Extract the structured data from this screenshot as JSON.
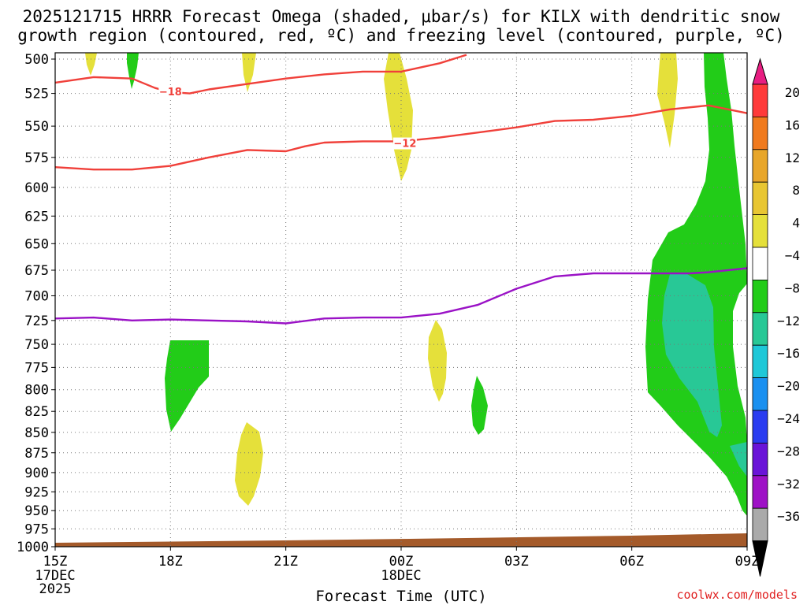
{
  "chart_data": {
    "type": "contour",
    "title_line1": "2025121715 HRRR Forecast Omega (shaded, μbar/s) for KILX with dendritic snow",
    "title_line2": "growth region (contoured, red, ºC) and freezing level (contoured, purple, ºC)",
    "xlabel": "Forecast Time (UTC)",
    "x_ticks": [
      {
        "hour": 0,
        "label": "15Z",
        "sub": [
          "17DEC",
          "2025"
        ]
      },
      {
        "hour": 3,
        "label": "18Z",
        "sub": []
      },
      {
        "hour": 6,
        "label": "21Z",
        "sub": []
      },
      {
        "hour": 9,
        "label": "00Z",
        "sub": [
          "18DEC"
        ]
      },
      {
        "hour": 12,
        "label": "03Z",
        "sub": []
      },
      {
        "hour": 15,
        "label": "06Z",
        "sub": []
      },
      {
        "hour": 18,
        "label": "09Z",
        "sub": []
      }
    ],
    "xlim_hours": [
      0,
      18
    ],
    "y_levels_hpa": [
      500,
      525,
      550,
      575,
      600,
      625,
      650,
      675,
      700,
      725,
      750,
      775,
      800,
      825,
      850,
      875,
      900,
      925,
      950,
      975,
      1000
    ],
    "ylim_hpa": [
      500,
      1000
    ],
    "y_scale": "log-pressure",
    "colorbar": {
      "labels": [
        "20",
        "16",
        "12",
        "8",
        "4",
        "−4",
        "−8",
        "−12",
        "−16",
        "−20",
        "−24",
        "−28",
        "−32",
        "−36"
      ],
      "colors": [
        "#ff3a3a",
        "#f07a1e",
        "#e8a62a",
        "#e8c632",
        "#e5e03a",
        "#ffffff",
        "#22cc18",
        "#28c896",
        "#1ec8d8",
        "#1a90f0",
        "#2a3cf0",
        "#6a14d8",
        "#9e12c6",
        "#aaaaaa"
      ],
      "top_arrow": "#e81e82",
      "bottom_arrow": "#000000"
    },
    "series": [
      {
        "name": "dgz_minus18",
        "color": "#f0403a",
        "label": "−18",
        "points": [
          [
            0,
            517
          ],
          [
            0.5,
            515
          ],
          [
            1,
            513
          ],
          [
            2,
            514
          ],
          [
            2.6,
            521
          ],
          [
            3,
            524
          ],
          [
            3.5,
            525
          ],
          [
            4,
            522
          ],
          [
            5,
            518
          ],
          [
            6,
            514
          ],
          [
            7,
            511
          ],
          [
            8,
            509
          ],
          [
            9,
            509
          ],
          [
            10,
            503
          ],
          [
            10.7,
            497
          ]
        ]
      },
      {
        "name": "dgz_minus12",
        "color": "#f0403a",
        "label": "−12",
        "points": [
          [
            0,
            583
          ],
          [
            1,
            585
          ],
          [
            2,
            585
          ],
          [
            3,
            582
          ],
          [
            4,
            575
          ],
          [
            5,
            569
          ],
          [
            6,
            570
          ],
          [
            6.5,
            566
          ],
          [
            7,
            563
          ],
          [
            8,
            562
          ],
          [
            9,
            562
          ],
          [
            10,
            559
          ],
          [
            11,
            555
          ],
          [
            12,
            551
          ],
          [
            13,
            546
          ],
          [
            14,
            545
          ],
          [
            15,
            542
          ],
          [
            16,
            537
          ],
          [
            17,
            534
          ],
          [
            18,
            540
          ]
        ]
      },
      {
        "name": "freezing_level_0",
        "color": "#9a12c6",
        "points": [
          [
            0,
            723
          ],
          [
            1,
            722
          ],
          [
            2,
            725
          ],
          [
            3,
            724
          ],
          [
            4,
            725
          ],
          [
            5,
            726
          ],
          [
            6,
            728
          ],
          [
            7,
            723
          ],
          [
            8,
            722
          ],
          [
            9,
            722
          ],
          [
            10,
            718
          ],
          [
            11,
            709
          ],
          [
            12,
            693
          ],
          [
            13,
            681
          ],
          [
            14,
            678
          ],
          [
            15,
            678
          ],
          [
            16,
            678
          ],
          [
            16.5,
            678
          ],
          [
            17,
            677
          ],
          [
            18,
            673
          ]
        ]
      }
    ],
    "shaded_regions": [
      {
        "name": "rising_minus4_to_minus8",
        "color": "#22cc18",
        "omega_range": [
          -8,
          -4
        ]
      },
      {
        "name": "rising_minus8_to_minus12",
        "color": "#28c896",
        "omega_range": [
          -12,
          -8
        ]
      },
      {
        "name": "sinking_4_to_8",
        "color": "#e5e03a",
        "omega_range": [
          4,
          8
        ]
      }
    ],
    "terrain_color": "#a45a2a",
    "contour_labels": [
      {
        "text": "−18",
        "hour": 3.0,
        "hpa": 524
      },
      {
        "text": "−12",
        "hour": 9.1,
        "hpa": 564
      }
    ]
  },
  "credit": "coolwx.com/models"
}
